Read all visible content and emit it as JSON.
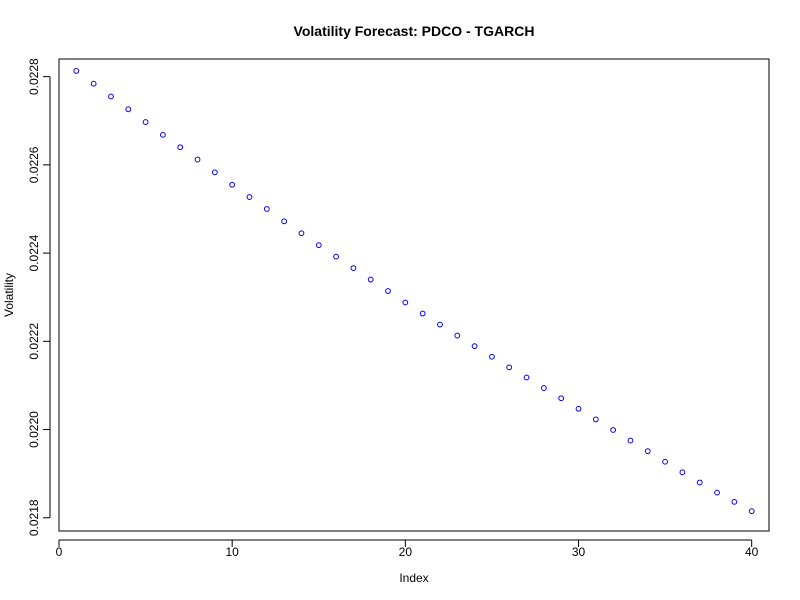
{
  "chart_data": {
    "type": "scatter",
    "title": "Volatility Forecast: PDCO - TGARCH",
    "xlabel": "Index",
    "ylabel": "Volatility",
    "xlim": [
      0,
      41
    ],
    "ylim": [
      0.02177,
      0.02284
    ],
    "xticks": [
      0,
      10,
      20,
      30,
      40
    ],
    "xtick_labels": [
      "0",
      "10",
      "20",
      "30",
      "40"
    ],
    "yticks": [
      0.0218,
      0.022,
      0.0222,
      0.0224,
      0.0226,
      0.0228
    ],
    "ytick_labels": [
      "0.0218",
      "0.0220",
      "0.0222",
      "0.0224",
      "0.0226",
      "0.0228"
    ],
    "grid": false,
    "marker_color": "#0000ff",
    "series": [
      {
        "x": [
          1,
          2,
          3,
          4,
          5,
          6,
          7,
          8,
          9,
          10,
          11,
          12,
          13,
          14,
          15,
          16,
          17,
          18,
          19,
          20,
          21,
          22,
          23,
          24,
          25,
          26,
          27,
          28,
          29,
          30,
          31,
          32,
          33,
          34,
          35,
          36,
          37,
          38,
          39,
          40
        ],
        "y": [
          0.022813,
          0.022784,
          0.022755,
          0.022726,
          0.022697,
          0.022668,
          0.02264,
          0.022612,
          0.022583,
          0.022555,
          0.022527,
          0.0225,
          0.022472,
          0.022445,
          0.022418,
          0.022392,
          0.022366,
          0.02234,
          0.022314,
          0.022288,
          0.022263,
          0.022238,
          0.022213,
          0.022189,
          0.022165,
          0.022141,
          0.022118,
          0.022094,
          0.022071,
          0.022047,
          0.022023,
          0.021999,
          0.021975,
          0.021951,
          0.021927,
          0.021903,
          0.02188,
          0.021857,
          0.021836,
          0.021815
        ]
      }
    ]
  }
}
